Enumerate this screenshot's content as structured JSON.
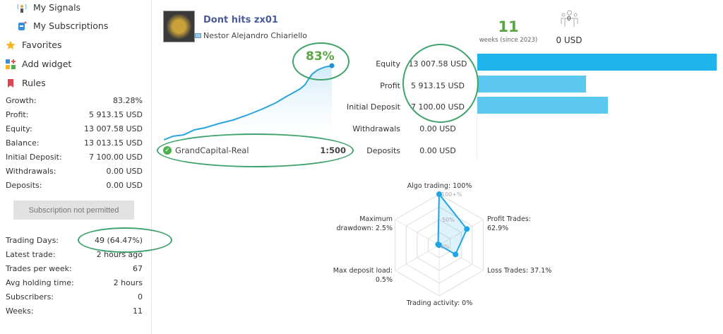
{
  "sidebar": {
    "menu": [
      {
        "label": "My Signals",
        "icon": "signal-tower-icon"
      },
      {
        "label": "My Subscriptions",
        "icon": "subscription-icon"
      },
      {
        "label": "Favorites",
        "icon": "star-icon"
      },
      {
        "label": "Add widget",
        "icon": "widget-icon"
      },
      {
        "label": "Rules",
        "icon": "bookmark-icon"
      }
    ],
    "stats": [
      {
        "label": "Growth:",
        "value": "83.28%"
      },
      {
        "label": "Profit:",
        "value": "5 913.15 USD"
      },
      {
        "label": "Equity:",
        "value": "13 007.58 USD"
      },
      {
        "label": "Balance:",
        "value": "13 013.15 USD"
      },
      {
        "label": "Initial Deposit:",
        "value": "7 100.00 USD"
      },
      {
        "label": "Withdrawals:",
        "value": "0.00 USD"
      },
      {
        "label": "Deposits:",
        "value": "0.00 USD"
      }
    ],
    "subscribe_button": "Subscription not permitted",
    "stats2": [
      {
        "label": "Trading Days:",
        "value": "49 (64.47%)"
      },
      {
        "label": "Latest trade:",
        "value": "2 hours ago"
      },
      {
        "label": "Trades per week:",
        "value": "67"
      },
      {
        "label": "Avg holding time:",
        "value": "2 hours"
      },
      {
        "label": "Subscribers:",
        "value": "0"
      },
      {
        "label": "Weeks:",
        "value": "11"
      }
    ]
  },
  "signal": {
    "title": "Dont hits zx01",
    "author": "Nestor Alejandro Chiariello",
    "growth": "83%",
    "server": "GrandCapital-Real",
    "leverage": "1:500",
    "weeks": "11",
    "weeks_label": "weeks (since 2023)",
    "subscribers_count": "0",
    "price": "0 USD"
  },
  "colors": {
    "accent": "#1fb5ec",
    "bar_light": "#5cc8f0",
    "growth_green": "#5aa545",
    "annotation": "#3fa36b",
    "title": "#4a5a9a"
  },
  "balance_table": [
    {
      "label": "Equity",
      "value": "13 007.58 USD",
      "amount": 13007.58
    },
    {
      "label": "Profit",
      "value": "5 913.15 USD",
      "amount": 5913.15
    },
    {
      "label": "Initial Deposit",
      "value": "7 100.00 USD",
      "amount": 7100
    },
    {
      "label": "Withdrawals",
      "value": "0.00 USD",
      "amount": 0
    },
    {
      "label": "Deposits",
      "value": "0.00 USD",
      "amount": 0
    }
  ],
  "chart_data": {
    "type": "radar",
    "axes": [
      {
        "label": "Algo trading: 100%",
        "value": 100
      },
      {
        "label": "Profit Trades: 62.9%",
        "value": 62.9
      },
      {
        "label": "Loss Trades: 37.1%",
        "value": 37.1
      },
      {
        "label": "Trading activity: 0%",
        "value": 0
      },
      {
        "label": "Max deposit load: 0.5%",
        "value": 0.5
      },
      {
        "label": "Maximum drawdown: 2.5%",
        "value": 2.5
      }
    ],
    "ring_labels": [
      "100+%",
      "50%",
      "0%"
    ],
    "range": [
      0,
      100
    ]
  }
}
